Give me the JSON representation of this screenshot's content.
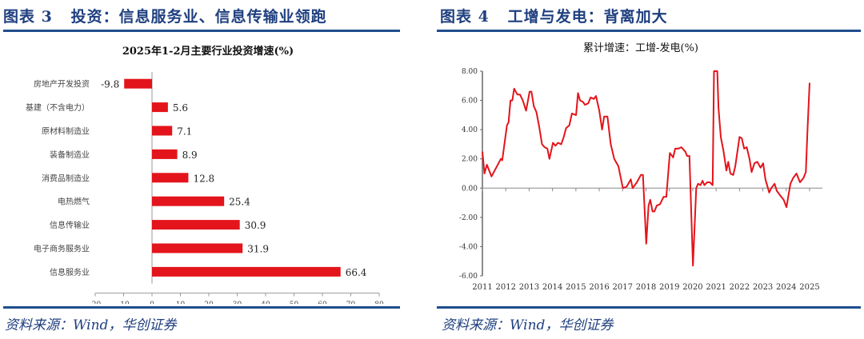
{
  "left_panel": {
    "title": "图表 3   投资：信息服务业、信息传输业领跑",
    "source": "资料来源：Wind，华创证券"
  },
  "right_panel": {
    "title": "图表 4   工增与发电：背离加大",
    "source": "资料来源：Wind，华创证券"
  },
  "chart_data": [
    {
      "type": "bar",
      "orientation": "horizontal",
      "title": "2025年1-2月主要行业投资增速(%)",
      "categories": [
        "房地产开发投资",
        "基建（不含电力）",
        "原材料制造业",
        "装备制造业",
        "消费品制造业",
        "电热燃气",
        "信息传输业",
        "电子商务服务业",
        "信息服务业"
      ],
      "values": [
        -9.8,
        5.6,
        7.1,
        8.9,
        12.8,
        25.4,
        30.9,
        31.9,
        66.4
      ],
      "data_labels": [
        "-9.8",
        "5.6",
        "7.1",
        "8.9",
        "12.8",
        "25.4",
        "30.9",
        "31.9",
        "66.4"
      ],
      "xlim": [
        -20,
        80
      ],
      "xticks": [
        "-20",
        "-10",
        "0",
        "10",
        "20",
        "30",
        "40",
        "50",
        "60",
        "70",
        "80"
      ],
      "bar_color": "#e3141b"
    },
    {
      "type": "line",
      "title": "累计增速：工增-发电(%)",
      "ylim": [
        -6,
        8
      ],
      "yticks": [
        "8.00",
        "6.00",
        "4.00",
        "2.00",
        "0.00",
        "-2.00",
        "-4.00",
        "-6.00"
      ],
      "xticks": [
        "2011",
        "2012",
        "2013",
        "2014",
        "2015",
        "2016",
        "2017",
        "2018",
        "2019",
        "2020",
        "2021",
        "2022",
        "2023",
        "2024",
        "2025"
      ],
      "line_color": "#e3141b",
      "series": [
        {
          "name": "工增-发电",
          "x": [
            2011.0,
            2011.09,
            2011.19,
            2011.39,
            2011.79,
            2011.85,
            2012.05,
            2012.12,
            2012.2,
            2012.28,
            2012.36,
            2012.5,
            2012.61,
            2012.73,
            2012.87,
            2013.02,
            2013.1,
            2013.2,
            2013.31,
            2013.43,
            2013.55,
            2013.66,
            2013.78,
            2013.87,
            2014.02,
            2014.13,
            2014.23,
            2014.37,
            2014.48,
            2014.58,
            2014.72,
            2014.83,
            2015.01,
            2015.09,
            2015.18,
            2015.3,
            2015.39,
            2015.53,
            2015.63,
            2015.77,
            2015.86,
            2016.0,
            2016.12,
            2016.21,
            2016.35,
            2016.49,
            2016.64,
            2016.82,
            2017.01,
            2017.17,
            2017.35,
            2017.43,
            2017.61,
            2017.78,
            2017.87,
            2018.01,
            2018.11,
            2018.18,
            2018.28,
            2018.36,
            2018.46,
            2018.6,
            2018.75,
            2018.87,
            2019.02,
            2019.16,
            2019.25,
            2019.39,
            2019.51,
            2019.68,
            2019.76,
            2019.86,
            2020.01,
            2020.15,
            2020.23,
            2020.33,
            2020.42,
            2020.5,
            2020.62,
            2020.73,
            2020.85,
            2020.91,
            2021.05,
            2021.1,
            2021.2,
            2021.32,
            2021.44,
            2021.52,
            2021.61,
            2021.73,
            2021.82,
            2022.0,
            2022.1,
            2022.2,
            2022.31,
            2022.43,
            2022.52,
            2022.64,
            2022.76,
            2022.9,
            2023.01,
            2023.11,
            2023.27,
            2023.36,
            2023.5,
            2023.6,
            2023.74,
            2023.89,
            2024.01,
            2024.18,
            2024.3,
            2024.44,
            2024.59,
            2024.74,
            2024.84,
            2024.91,
            2025.0
          ],
          "y": [
            2.5,
            1.0,
            1.6,
            0.8,
            2.0,
            1.9,
            4.3,
            4.5,
            6.0,
            6.0,
            6.8,
            6.4,
            6.4,
            6.0,
            5.3,
            6.6,
            6.6,
            5.6,
            5.2,
            4.2,
            3.0,
            2.8,
            2.7,
            2.0,
            3.1,
            2.9,
            3.1,
            3.0,
            3.5,
            4.1,
            4.3,
            5.1,
            5.0,
            6.5,
            6.0,
            5.9,
            5.7,
            5.8,
            6.2,
            6.1,
            6.3,
            5.3,
            4.0,
            4.9,
            4.9,
            3.0,
            2.0,
            1.5,
            0.0,
            0.1,
            0.6,
            0.0,
            0.4,
            0.9,
            0.9,
            -3.8,
            -1.2,
            -0.8,
            -1.6,
            -1.6,
            -1.2,
            -1.1,
            -0.6,
            -0.6,
            2.4,
            2.1,
            2.7,
            2.7,
            2.8,
            2.5,
            2.2,
            2.2,
            -5.3,
            0.0,
            0.3,
            0.2,
            0.5,
            0.2,
            0.4,
            0.4,
            0.2,
            8.0,
            8.0,
            5.5,
            3.5,
            2.5,
            1.2,
            1.8,
            1.0,
            0.9,
            1.5,
            3.5,
            3.4,
            2.7,
            2.8,
            2.0,
            1.1,
            1.7,
            1.8,
            1.4,
            1.7,
            0.6,
            -0.3,
            0.0,
            0.3,
            -0.2,
            -0.5,
            -0.8,
            -1.3,
            0.3,
            0.7,
            1.0,
            0.4,
            0.7,
            1.1,
            4.0,
            7.2
          ]
        }
      ]
    }
  ]
}
